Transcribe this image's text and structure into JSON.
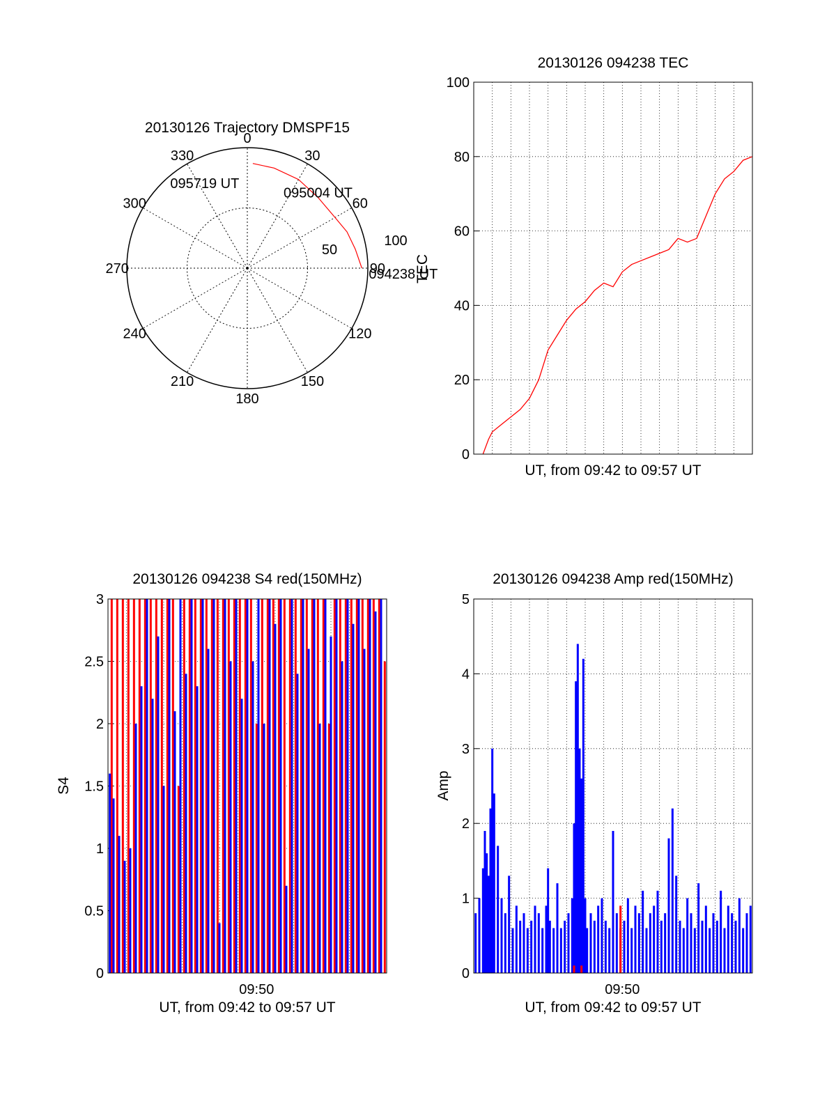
{
  "chart_data": [
    {
      "type": "polar",
      "title": "20130126 Trajectory DMSPF15",
      "azimuth_labels": [
        "0",
        "30",
        "60",
        "90",
        "120",
        "150",
        "180",
        "210",
        "240",
        "270",
        "300",
        "330"
      ],
      "radial_labels": [
        "50",
        "100"
      ],
      "radial_range": [
        0,
        100
      ],
      "grid": true,
      "series_color": "#ff0000",
      "trajectory": [
        {
          "az": 90,
          "r": 95
        },
        {
          "az": 80,
          "r": 91
        },
        {
          "az": 70,
          "r": 88
        },
        {
          "az": 60,
          "r": 84
        },
        {
          "az": 45,
          "r": 83
        },
        {
          "az": 30,
          "r": 85
        },
        {
          "az": 15,
          "r": 86
        },
        {
          "az": 3,
          "r": 87
        }
      ],
      "annotations": [
        {
          "text": "095719 UT",
          "az": 352,
          "r": 67
        },
        {
          "text": "095004 UT",
          "az": 45,
          "r": 83
        },
        {
          "text": "094238 UT",
          "az": 90,
          "r": 95
        }
      ]
    },
    {
      "type": "line",
      "title": "20130126 094238 TEC",
      "xlabel": "UT, from 09:42 to 09:57 UT",
      "ylabel": "TEC",
      "xlim": [
        0,
        15
      ],
      "ylim": [
        0,
        100
      ],
      "yticks": [
        "0",
        "20",
        "40",
        "60",
        "80",
        "100"
      ],
      "grid": true,
      "series_color": "#ff0000",
      "x": [
        0.5,
        0.8,
        1.0,
        1.5,
        2.0,
        2.5,
        3.0,
        3.5,
        4.0,
        4.5,
        5.0,
        5.5,
        6.0,
        6.5,
        7.0,
        7.5,
        8.0,
        8.5,
        9.0,
        9.5,
        10.0,
        10.5,
        11.0,
        11.5,
        12.0,
        12.5,
        13.0,
        13.5,
        14.0,
        14.5,
        15.0
      ],
      "values": [
        0,
        4,
        6,
        8,
        10,
        12,
        15,
        20,
        28,
        32,
        36,
        39,
        41,
        44,
        46,
        45,
        49,
        51,
        52,
        53,
        54,
        55,
        58,
        57,
        58,
        64,
        70,
        74,
        76,
        79,
        80
      ]
    },
    {
      "type": "bar",
      "title": "20130126 094238 S4 red(150MHz)",
      "xlabel": "UT, from 09:42 to 09:57 UT",
      "ylabel": "S4",
      "xlim": [
        0,
        15
      ],
      "ylim": [
        0,
        3
      ],
      "yticks": [
        "0",
        "0.5",
        "1",
        "1.5",
        "2",
        "2.5",
        "3"
      ],
      "xticks": [
        "09:50"
      ],
      "grid": true,
      "series": [
        {
          "color": "#ff0000",
          "x": [
            0.2,
            0.5,
            0.8,
            1.1,
            1.4,
            1.7,
            2.0,
            2.3,
            2.6,
            2.9,
            3.2,
            3.5,
            3.8,
            4.1,
            4.4,
            4.7,
            5.0,
            5.3,
            5.6,
            5.9,
            6.2,
            6.5,
            6.8,
            7.1,
            7.4,
            7.7,
            8.0,
            8.3,
            8.6,
            8.9,
            9.2,
            9.5,
            9.8,
            10.1,
            10.4,
            10.7,
            11.0,
            11.3,
            11.6,
            11.9,
            12.2,
            12.5,
            12.8,
            13.1,
            13.4,
            13.7,
            14.0,
            14.3,
            14.6,
            14.9
          ],
          "values": [
            3,
            3,
            3,
            3,
            3,
            3,
            3,
            3,
            3,
            3,
            3,
            3,
            1.5,
            3,
            3,
            3,
            3,
            3,
            3,
            3,
            3,
            3,
            3,
            3,
            3,
            3,
            2,
            3,
            3,
            3,
            3,
            3,
            3,
            3,
            3,
            3,
            3,
            3,
            3,
            2,
            3,
            3,
            3,
            3,
            3,
            3,
            3,
            3,
            3,
            2.5
          ]
        },
        {
          "color": "#0000ff",
          "x": [
            0.1,
            0.3,
            0.6,
            0.9,
            1.2,
            1.5,
            1.8,
            2.1,
            2.4,
            2.7,
            3.0,
            3.3,
            3.6,
            3.9,
            4.2,
            4.5,
            4.8,
            5.1,
            5.4,
            5.7,
            6.0,
            6.3,
            6.6,
            6.9,
            7.2,
            7.5,
            7.8,
            8.1,
            8.4,
            8.7,
            9.0,
            9.3,
            9.6,
            9.9,
            10.2,
            10.5,
            10.8,
            11.1,
            11.4,
            11.7,
            12.0,
            12.3,
            12.6,
            12.9,
            13.2,
            13.5,
            13.8,
            14.1,
            14.4,
            14.7
          ],
          "values": [
            1.6,
            1.4,
            1.1,
            0.9,
            1.0,
            2.0,
            2.3,
            3,
            2.2,
            2.7,
            1.5,
            3,
            2.1,
            3,
            2.4,
            3,
            2.3,
            3,
            2.6,
            3,
            0.4,
            3,
            2.5,
            3,
            2.2,
            3,
            2.5,
            3,
            2.0,
            3,
            2.8,
            3,
            0.7,
            3,
            2.4,
            3,
            2.6,
            3,
            2.0,
            3,
            2.7,
            3,
            2.5,
            3,
            2.8,
            3,
            2.6,
            3,
            2.9,
            3
          ]
        }
      ]
    },
    {
      "type": "bar",
      "title": "20130126 094238 Amp red(150MHz)",
      "xlabel": "UT, from 09:42 to 09:57 UT",
      "ylabel": "Amp",
      "xlim": [
        0,
        15
      ],
      "ylim": [
        0,
        5
      ],
      "yticks": [
        "0",
        "1",
        "2",
        "3",
        "4",
        "5"
      ],
      "xticks": [
        "09:50"
      ],
      "grid": true,
      "series": [
        {
          "color": "#0000ff",
          "x": [
            0.1,
            0.3,
            0.5,
            0.6,
            0.7,
            0.8,
            0.9,
            1.0,
            1.1,
            1.3,
            1.5,
            1.7,
            1.9,
            2.1,
            2.3,
            2.5,
            2.7,
            2.9,
            3.1,
            3.3,
            3.5,
            3.7,
            3.9,
            4.0,
            4.1,
            4.3,
            4.5,
            4.7,
            4.9,
            5.1,
            5.3,
            5.4,
            5.5,
            5.6,
            5.7,
            5.8,
            5.9,
            6.0,
            6.1,
            6.3,
            6.5,
            6.7,
            6.9,
            7.1,
            7.3,
            7.5,
            7.7,
            7.9,
            8.1,
            8.3,
            8.5,
            8.7,
            8.9,
            9.1,
            9.3,
            9.5,
            9.7,
            9.9,
            10.1,
            10.3,
            10.5,
            10.7,
            10.9,
            11.1,
            11.3,
            11.5,
            11.7,
            11.9,
            12.1,
            12.3,
            12.5,
            12.7,
            12.9,
            13.1,
            13.3,
            13.5,
            13.7,
            13.9,
            14.1,
            14.3,
            14.5,
            14.7,
            14.9
          ],
          "values": [
            0.8,
            1.0,
            1.4,
            1.9,
            1.6,
            1.3,
            2.2,
            3.0,
            2.4,
            1.7,
            1.0,
            0.8,
            1.3,
            0.6,
            0.9,
            0.7,
            0.8,
            0.6,
            0.7,
            0.9,
            0.8,
            0.6,
            0.9,
            1.4,
            0.7,
            0.6,
            1.2,
            0.6,
            0.7,
            0.8,
            1.0,
            2.0,
            3.9,
            4.4,
            3.0,
            2.6,
            4.2,
            1.0,
            0.6,
            0.8,
            0.7,
            0.9,
            1.0,
            0.7,
            0.6,
            1.9,
            0.8,
            0.6,
            0.7,
            1.0,
            0.6,
            0.9,
            0.8,
            1.1,
            0.6,
            0.8,
            0.9,
            1.1,
            0.7,
            0.8,
            1.8,
            2.2,
            1.3,
            0.7,
            0.6,
            1.0,
            0.8,
            0.6,
            1.2,
            0.7,
            0.9,
            0.6,
            0.8,
            0.7,
            1.1,
            0.6,
            0.9,
            0.8,
            0.7,
            1.0,
            0.6,
            0.8,
            0.9
          ]
        },
        {
          "color": "#ff0000",
          "x": [
            5.4,
            5.8,
            7.9
          ],
          "values": [
            0.1,
            0.1,
            0.9
          ]
        }
      ]
    }
  ]
}
